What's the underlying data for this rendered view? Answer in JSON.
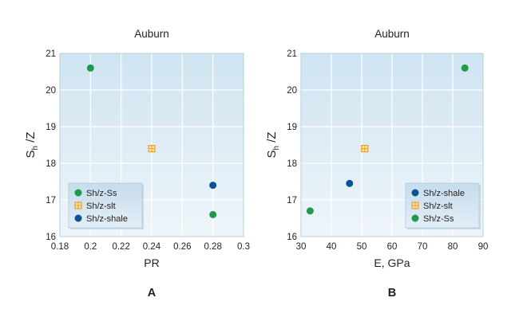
{
  "colors": {
    "plot_bg_top": "#cfe4f1",
    "plot_bg_bottom": "#eef5fa",
    "grid": "#ffffff",
    "frame": "#b3cfe0",
    "legend_bg": "#cfe2ef",
    "legend_border": "#b0cadc",
    "ss": "#1f9a4a",
    "slt_fill": "#fce3a8",
    "slt_stroke": "#e8a02c",
    "shale": "#0b5394"
  },
  "chart_data": [
    {
      "type": "scatter",
      "title": "Auburn",
      "xlabel": "PR",
      "ylabel_main": "S",
      "ylabel_sub": "h",
      "ylabel_rest": " /Z",
      "panel_label": "A",
      "xlim": [
        0.18,
        0.3
      ],
      "ylim": [
        16,
        21
      ],
      "xticks": [
        "0.18",
        "0.2",
        "0.22",
        "0.24",
        "0.26",
        "0.28",
        "0.3"
      ],
      "xtick_values": [
        0.18,
        0.2,
        0.22,
        0.24,
        0.26,
        0.28,
        0.3
      ],
      "yticks": [
        "16",
        "17",
        "18",
        "19",
        "20",
        "21"
      ],
      "ytick_values": [
        16,
        17,
        18,
        19,
        20,
        21
      ],
      "grid": true,
      "legend_position": "bottom-left",
      "series": [
        {
          "name": "Sh/z-Ss",
          "marker": "circle",
          "color": "ss",
          "points": [
            {
              "x": 0.2,
              "y": 20.6
            },
            {
              "x": 0.28,
              "y": 16.6
            }
          ]
        },
        {
          "name": "Sh/z-slt",
          "marker": "square",
          "color": "slt",
          "points": [
            {
              "x": 0.24,
              "y": 18.4
            }
          ]
        },
        {
          "name": "Sh/z-shale",
          "marker": "circle",
          "color": "shale",
          "points": [
            {
              "x": 0.28,
              "y": 17.4
            }
          ]
        }
      ]
    },
    {
      "type": "scatter",
      "title": "Auburn",
      "xlabel": "E, GPa",
      "ylabel_main": "S",
      "ylabel_sub": "h",
      "ylabel_rest": " /Z",
      "panel_label": "B",
      "xlim": [
        30,
        90
      ],
      "ylim": [
        16,
        21
      ],
      "xticks": [
        "30",
        "40",
        "50",
        "60",
        "70",
        "80",
        "90"
      ],
      "xtick_values": [
        30,
        40,
        50,
        60,
        70,
        80,
        90
      ],
      "yticks": [
        "16",
        "17",
        "18",
        "19",
        "20",
        "21"
      ],
      "ytick_values": [
        16,
        17,
        18,
        19,
        20,
        21
      ],
      "grid": true,
      "legend_position": "bottom-right",
      "series": [
        {
          "name": "Sh/z-shale",
          "marker": "circle",
          "color": "shale",
          "points": [
            {
              "x": 46,
              "y": 17.45
            }
          ]
        },
        {
          "name": "Sh/z-slt",
          "marker": "square",
          "color": "slt",
          "points": [
            {
              "x": 51,
              "y": 18.4
            }
          ]
        },
        {
          "name": "Sh/z-Ss",
          "marker": "circle",
          "color": "ss",
          "points": [
            {
              "x": 33,
              "y": 16.7
            },
            {
              "x": 84,
              "y": 20.6
            }
          ]
        }
      ]
    }
  ]
}
